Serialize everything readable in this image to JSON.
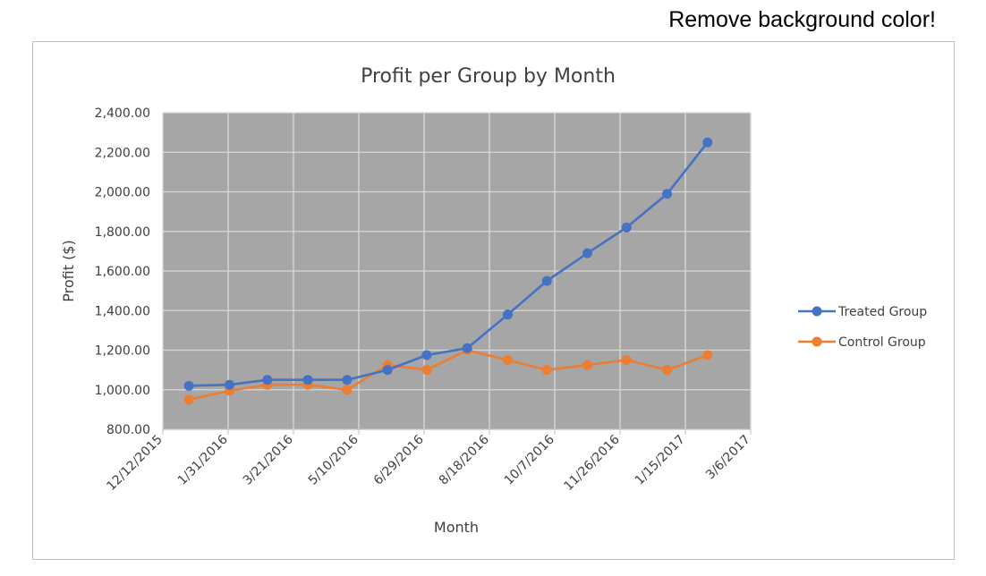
{
  "note": "Remove background color!",
  "chart_data": {
    "type": "line",
    "title": "Profit per Group by Month",
    "xlabel": "Month",
    "ylabel": "Profit ($)",
    "x_tick_labels": [
      "12/12/2015",
      "1/31/2016",
      "3/21/2016",
      "5/10/2016",
      "6/29/2016",
      "8/18/2016",
      "10/7/2016",
      "11/26/2016",
      "1/15/2017",
      "3/6/2017"
    ],
    "y_tick_labels": [
      "800.00",
      "1,000.00",
      "1,200.00",
      "1,400.00",
      "1,600.00",
      "1,800.00",
      "2,000.00",
      "2,200.00",
      "2,400.00"
    ],
    "ylim": [
      800,
      2400
    ],
    "xlim": [
      "2015-12-12",
      "2017-03-06"
    ],
    "x": [
      "2016-01-01",
      "2016-02-01",
      "2016-03-01",
      "2016-04-01",
      "2016-05-01",
      "2016-06-01",
      "2016-07-01",
      "2016-08-01",
      "2016-09-01",
      "2016-10-01",
      "2016-11-01",
      "2016-12-01",
      "2017-01-01",
      "2017-02-01"
    ],
    "series": [
      {
        "name": "Treated Group",
        "color": "#4472c4",
        "values": [
          1020,
          1025,
          1050,
          1050,
          1050,
          1100,
          1175,
          1210,
          1380,
          1550,
          1690,
          1820,
          1990,
          2250
        ]
      },
      {
        "name": "Control Group",
        "color": "#ed7d31",
        "values": [
          950,
          995,
          1025,
          1025,
          1000,
          1125,
          1100,
          1200,
          1150,
          1100,
          1125,
          1150,
          1100,
          1175
        ]
      }
    ],
    "plot_background": "#a6a6a6",
    "grid": true,
    "legend_position": "right"
  }
}
